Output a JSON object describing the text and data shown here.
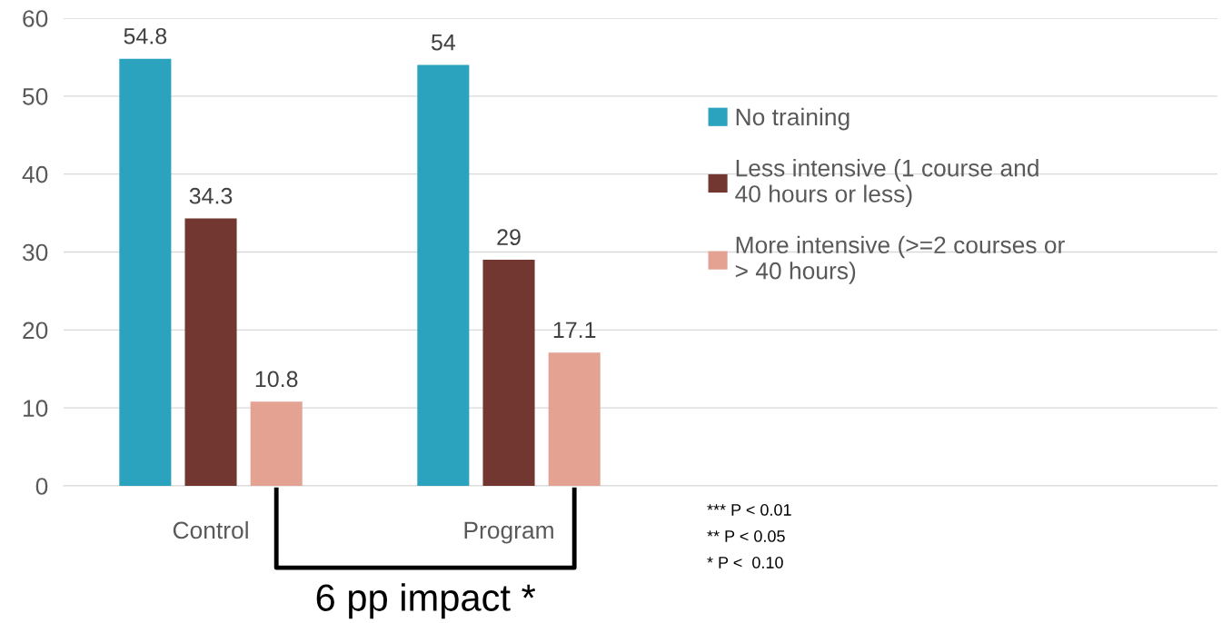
{
  "chart_data": {
    "type": "bar",
    "categories": [
      "Control",
      "Program"
    ],
    "series": [
      {
        "name": "No training",
        "color": "#2ba3bf",
        "values": [
          54.8,
          54
        ]
      },
      {
        "name": "Less intensive (1 course and 40 hours or less)",
        "color": "#713730",
        "values": [
          34.3,
          29
        ]
      },
      {
        "name": "More intensive (>=2 courses or > 40 hours)",
        "color": "#e4a293",
        "values": [
          10.8,
          17.1
        ]
      }
    ],
    "ylim": [
      0,
      60
    ],
    "yticks": [
      0,
      10,
      20,
      30,
      40,
      50,
      60
    ],
    "grid": "y",
    "legend": "right",
    "data_labels": true,
    "annotations": [
      "6 pp impact *",
      "*** P < 0.01",
      "** P < 0.05",
      "* P <  0.10"
    ]
  }
}
